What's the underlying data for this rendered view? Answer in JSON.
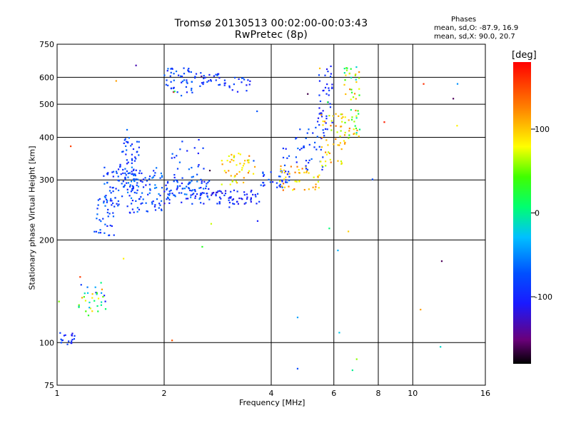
{
  "chart_data": {
    "type": "scatter",
    "title": "Tromsø 20130513 00:02:00-00:03:43",
    "subtitle": "RwPretec (8p)",
    "xlabel": "Frequency [MHz]",
    "ylabel": "Stationary phase Virtual Height [km]",
    "x_scale": "log",
    "y_scale": "log",
    "xlim": [
      1,
      16
    ],
    "ylim": [
      75,
      750
    ],
    "x_ticks": [
      1,
      2,
      4,
      6,
      8,
      10,
      16
    ],
    "y_ticks": [
      75,
      100,
      200,
      300,
      400,
      500,
      600,
      750
    ],
    "grid": true,
    "phase_stats": {
      "heading": "Phases",
      "o_line": "mean, sd,O: -87.9, 16.9",
      "x_line": "mean, sd,X:  90.0, 20.7"
    },
    "colorbar": {
      "title": "[deg]",
      "range": [
        -180,
        180
      ],
      "ticks": [
        100,
        0,
        -100
      ],
      "tick_labels": [
        "100",
        "0",
        "-100"
      ]
    },
    "clusters": [
      {
        "f": [
          1.0,
          1.12
        ],
        "h": [
          98,
          108
        ],
        "phase": [
          -120,
          -70
        ],
        "n": 18
      },
      {
        "f": [
          1.15,
          1.38
        ],
        "h": [
          120,
          150
        ],
        "phase": [
          -110,
          120
        ],
        "n": 35
      },
      {
        "f": [
          1.25,
          1.45
        ],
        "h": [
          205,
          265
        ],
        "phase": [
          -110,
          -60
        ],
        "n": 30
      },
      {
        "f": [
          1.35,
          1.65
        ],
        "h": [
          250,
          330
        ],
        "phase": [
          -110,
          -50
        ],
        "n": 80
      },
      {
        "f": [
          1.5,
          1.7
        ],
        "h": [
          300,
          400
        ],
        "phase": [
          -115,
          -60
        ],
        "n": 45
      },
      {
        "f": [
          1.6,
          2.0
        ],
        "h": [
          240,
          330
        ],
        "phase": [
          -110,
          -50
        ],
        "n": 80
      },
      {
        "f": [
          2.0,
          2.7
        ],
        "h": [
          255,
          300
        ],
        "phase": [
          -115,
          -50
        ],
        "n": 90
      },
      {
        "f": [
          2.1,
          2.6
        ],
        "h": [
          300,
          400
        ],
        "phase": [
          -110,
          -60
        ],
        "n": 25
      },
      {
        "f": [
          2.7,
          3.7
        ],
        "h": [
          255,
          280
        ],
        "phase": [
          -125,
          -80
        ],
        "n": 60
      },
      {
        "f": [
          2.9,
          3.6
        ],
        "h": [
          290,
          360
        ],
        "phase": [
          60,
          130
        ],
        "n": 45
      },
      {
        "f": [
          3.7,
          4.5
        ],
        "h": [
          285,
          320
        ],
        "phase": [
          -110,
          -60
        ],
        "n": 35
      },
      {
        "f": [
          4.2,
          5.5
        ],
        "h": [
          280,
          330
        ],
        "phase": [
          70,
          140
        ],
        "n": 45
      },
      {
        "f": [
          4.3,
          5.8
        ],
        "h": [
          320,
          430
        ],
        "phase": [
          -110,
          -60
        ],
        "n": 45
      },
      {
        "f": [
          5.4,
          6.0
        ],
        "h": [
          420,
          650
        ],
        "phase": [
          -115,
          -80
        ],
        "n": 40
      },
      {
        "f": [
          5.5,
          6.6
        ],
        "h": [
          330,
          470
        ],
        "phase": [
          60,
          130
        ],
        "n": 50
      },
      {
        "f": [
          6.4,
          7.1
        ],
        "h": [
          400,
          650
        ],
        "phase": [
          -20,
          130
        ],
        "n": 55
      },
      {
        "f": [
          2.0,
          2.4
        ],
        "h": [
          530,
          640
        ],
        "phase": [
          -110,
          -60
        ],
        "n": 45
      },
      {
        "f": [
          2.4,
          2.9
        ],
        "h": [
          560,
          620
        ],
        "phase": [
          -110,
          -60
        ],
        "n": 25
      },
      {
        "f": [
          2.9,
          3.5
        ],
        "h": [
          540,
          600
        ],
        "phase": [
          -115,
          -70
        ],
        "n": 20
      },
      {
        "f": [
          1.0,
          15.0
        ],
        "h": [
          80,
          700
        ],
        "phase": [
          -170,
          170
        ],
        "n": 40
      }
    ]
  }
}
